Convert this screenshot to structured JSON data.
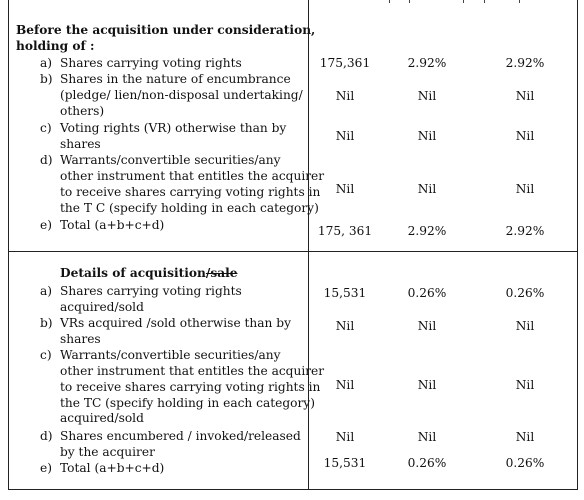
{
  "section1": {
    "heading_line1": "Before the acquisition under consideration,",
    "heading_line2": "holding of :",
    "items": [
      {
        "letter": "a)",
        "lines": [
          "Shares carrying voting rights"
        ],
        "v1": "175,361",
        "v2": "2.92%",
        "v3": "2.92%"
      },
      {
        "letter": "b)",
        "lines": [
          "Shares in the nature of encumbrance",
          "(pledge/ lien/non-disposal undertaking/",
          "others)"
        ],
        "v1": "Nil",
        "v2": "Nil",
        "v3": "Nil"
      },
      {
        "letter": "c)",
        "lines": [
          "Voting rights (VR) otherwise than by",
          "shares"
        ],
        "v1": "Nil",
        "v2": "Nil",
        "v3": "Nil"
      },
      {
        "letter": "d)",
        "lines": [
          "Warrants/convertible securities/any",
          "other instrument that entitles the acquirer",
          "to receive shares carrying voting rights in",
          "the T C (specify holding in each category)"
        ],
        "v1": "Nil",
        "v2": "Nil",
        "v3": "Nil"
      },
      {
        "letter": "e)",
        "lines": [
          "Total (a+b+c+d)"
        ],
        "v1": "175, 361",
        "v2": "2.92%",
        "v3": "2.92%"
      }
    ]
  },
  "section2": {
    "heading_main": "Details of acquisition",
    "heading_struck": "/sale",
    "items": [
      {
        "letter": "a)",
        "lines": [
          "Shares carrying voting rights",
          "acquired/sold"
        ],
        "v1": "15,531",
        "v2": "0.26%",
        "v3": "0.26%"
      },
      {
        "letter": "b)",
        "lines": [
          "VRs acquired /sold otherwise than by",
          "shares"
        ],
        "v1": "Nil",
        "v2": "Nil",
        "v3": "Nil"
      },
      {
        "letter": "c)",
        "lines": [
          "Warrants/convertible securities/any",
          "other instrument that entitles the acquirer",
          "to receive shares carrying voting rights in",
          "the TC (specify holding in each category)",
          "acquired/sold"
        ],
        "v1": "Nil",
        "v2": "Nil",
        "v3": "Nil"
      },
      {
        "letter": "d)",
        "lines": [
          "Shares encumbered / invoked/released",
          "by the acquirer"
        ],
        "v1": "Nil",
        "v2": "Nil",
        "v3": "Nil"
      },
      {
        "letter": "e)",
        "lines": [
          "Total (a+b+c+d)"
        ],
        "v1": "15,531",
        "v2": "0.26%",
        "v3": "0.26%"
      }
    ]
  }
}
